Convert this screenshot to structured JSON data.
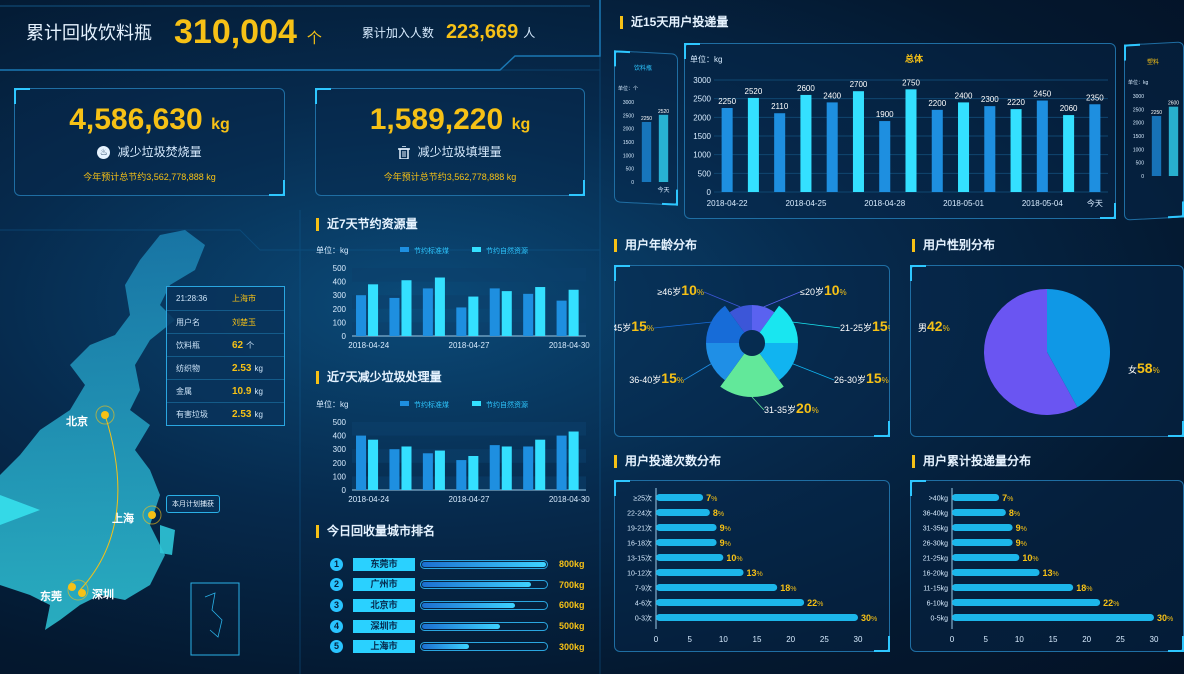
{
  "header": {
    "title": "累计回收饮料瓶",
    "total": "310,004",
    "total_unit": "个",
    "users_label": "累计加入人数",
    "users_value": "223,669",
    "users_unit": "人"
  },
  "stats": {
    "incinerate": {
      "value": "4,586,630",
      "unit": "kg",
      "label": "减少垃圾焚烧量",
      "note": "今年预计总节约3,562,778,888 kg",
      "icon": "fire-icon"
    },
    "landfill": {
      "value": "1,589,220",
      "unit": "kg",
      "label": "减少垃圾填埋量",
      "note": "今年预计总节约3,562,778,888 kg",
      "icon": "trash-icon"
    }
  },
  "map": {
    "time": "21:28:36",
    "city": "上海市",
    "rows": [
      {
        "key": "用户名",
        "value": "刘楚玉",
        "unit": ""
      },
      {
        "key": "饮料瓶",
        "value": "62",
        "unit": "个"
      },
      {
        "key": "纺织物",
        "value": "2.53",
        "unit": "kg"
      },
      {
        "key": "金属",
        "value": "10.9",
        "unit": "kg"
      },
      {
        "key": "有害垃圾",
        "value": "2.53",
        "unit": "kg"
      }
    ],
    "cities": [
      "北京",
      "上海",
      "东莞",
      "深圳"
    ],
    "plan_label": "本月计划捕获"
  },
  "colors": {
    "accent": "#f6c116",
    "bar_dark": "#1e8fe0",
    "bar_light": "#34e0ff",
    "pie_male": "#0f98e6",
    "pie_female": "#6a55f2"
  },
  "chart_data": [
    {
      "id": "save7",
      "type": "bar",
      "title": "近7天节约资源量",
      "unit_label": "单位：kg",
      "categories": [
        "2018-04-24",
        "",
        "",
        "2018-04-27",
        "",
        "",
        "2018-04-30"
      ],
      "series": [
        {
          "name": "节约标准煤",
          "values": [
            300,
            280,
            350,
            210,
            350,
            310,
            260
          ]
        },
        {
          "name": "节约自然资源",
          "values": [
            380,
            410,
            430,
            290,
            330,
            360,
            340
          ]
        }
      ],
      "ylim": [
        0,
        500
      ],
      "yticks": [
        0,
        100,
        200,
        300,
        400,
        500
      ],
      "legend": "top"
    },
    {
      "id": "reduce7",
      "type": "bar",
      "title": "近7天减少垃圾处理量",
      "unit_label": "单位：kg",
      "categories": [
        "2018-04-24",
        "",
        "",
        "2018-04-27",
        "",
        "",
        "2018-04-30"
      ],
      "series": [
        {
          "name": "节约标准煤",
          "values": [
            400,
            300,
            270,
            220,
            330,
            320,
            400
          ]
        },
        {
          "name": "节约自然资源",
          "values": [
            370,
            320,
            290,
            250,
            320,
            370,
            430
          ]
        }
      ],
      "ylim": [
        0,
        500
      ],
      "yticks": [
        0,
        100,
        200,
        300,
        400,
        500
      ],
      "legend": "top"
    },
    {
      "id": "user15",
      "type": "bar",
      "title": "近15天用户投递量",
      "subtitle": "总体",
      "unit_label": "单位：kg",
      "categories": [
        "2018-04-22",
        "",
        "",
        "2018-04-25",
        "",
        "",
        "2018-04-28",
        "",
        "",
        "2018-05-01",
        "",
        "",
        "2018-05-04",
        "",
        "今天"
      ],
      "values": [
        2250,
        2520,
        2110,
        2600,
        2400,
        2700,
        1900,
        2750,
        2200,
        2400,
        2300,
        2220,
        2450,
        2060,
        2350
      ],
      "ylim": [
        0,
        3000
      ],
      "yticks": [
        0,
        500,
        1000,
        1500,
        2000,
        2500,
        3000
      ]
    },
    {
      "id": "bottle_side",
      "type": "bar",
      "title": "饮料瓶",
      "unit_label": "单位：个",
      "categories": [
        "",
        "今天"
      ],
      "values": [
        2250,
        2520
      ],
      "ylim": [
        0,
        3000
      ],
      "yticks": [
        0,
        500,
        1000,
        1500,
        2000,
        2500,
        3000
      ]
    },
    {
      "id": "paper_side",
      "type": "bar",
      "title": "塑料",
      "unit_label": "单位：kg",
      "categories": [
        "",
        ""
      ],
      "values": [
        2250,
        2600
      ],
      "ylim": [
        0,
        3000
      ],
      "yticks": [
        0,
        500,
        1000,
        1500,
        2000,
        2500,
        3000
      ]
    },
    {
      "id": "age",
      "type": "pie",
      "title": "用户年龄分布",
      "rose": true,
      "slices": [
        {
          "label": "≤20岁",
          "value": 10
        },
        {
          "label": "21-25岁",
          "value": 15
        },
        {
          "label": "26-30岁",
          "value": 15
        },
        {
          "label": "31-35岁",
          "value": 20
        },
        {
          "label": "36-40岁",
          "value": 15
        },
        {
          "label": "41-45岁",
          "value": 15
        },
        {
          "label": "≥46岁",
          "value": 10
        }
      ],
      "colors": [
        "#5a62f0",
        "#19e6f0",
        "#11b4f0",
        "#62e89a",
        "#1f8fe6",
        "#176cd8",
        "#3c56d8"
      ]
    },
    {
      "id": "gender",
      "type": "pie",
      "title": "用户性别分布",
      "slices": [
        {
          "label": "男",
          "value": 42
        },
        {
          "label": "女",
          "value": 58
        }
      ]
    },
    {
      "id": "times",
      "type": "bar",
      "orientation": "horizontal",
      "title": "用户投递次数分布",
      "categories": [
        "≥25次",
        "22-24次",
        "19-21次",
        "16-18次",
        "13-15次",
        "10-12次",
        "7-9次",
        "4-6次",
        "0-3次"
      ],
      "values": [
        7,
        8,
        9,
        9,
        10,
        13,
        18,
        22,
        30
      ],
      "value_suffix": "%",
      "xlim": [
        0,
        30
      ],
      "xticks": [
        0,
        5,
        10,
        15,
        20,
        25,
        30
      ]
    },
    {
      "id": "weight",
      "type": "bar",
      "orientation": "horizontal",
      "title": "用户累计投递量分布",
      "categories": [
        ">40kg",
        "36-40kg",
        "31-35kg",
        "26-30kg",
        "21-25kg",
        "16-20kg",
        "11-15kg",
        "6-10kg",
        "0-5kg"
      ],
      "values": [
        7,
        8,
        9,
        9,
        10,
        13,
        18,
        22,
        30
      ],
      "value_suffix": "%",
      "xlim": [
        0,
        30
      ],
      "xticks": [
        0,
        5,
        10,
        15,
        20,
        25,
        30
      ]
    }
  ],
  "ranking": {
    "title": "今日回收量城市排名",
    "items": [
      {
        "rank": "1",
        "city": "东莞市",
        "value": "800kg",
        "amount": 800
      },
      {
        "rank": "2",
        "city": "广州市",
        "value": "700kg",
        "amount": 700
      },
      {
        "rank": "3",
        "city": "北京市",
        "value": "600kg",
        "amount": 600
      },
      {
        "rank": "4",
        "city": "深圳市",
        "value": "500kg",
        "amount": 500
      },
      {
        "rank": "5",
        "city": "上海市",
        "value": "300kg",
        "amount": 300
      }
    ]
  }
}
